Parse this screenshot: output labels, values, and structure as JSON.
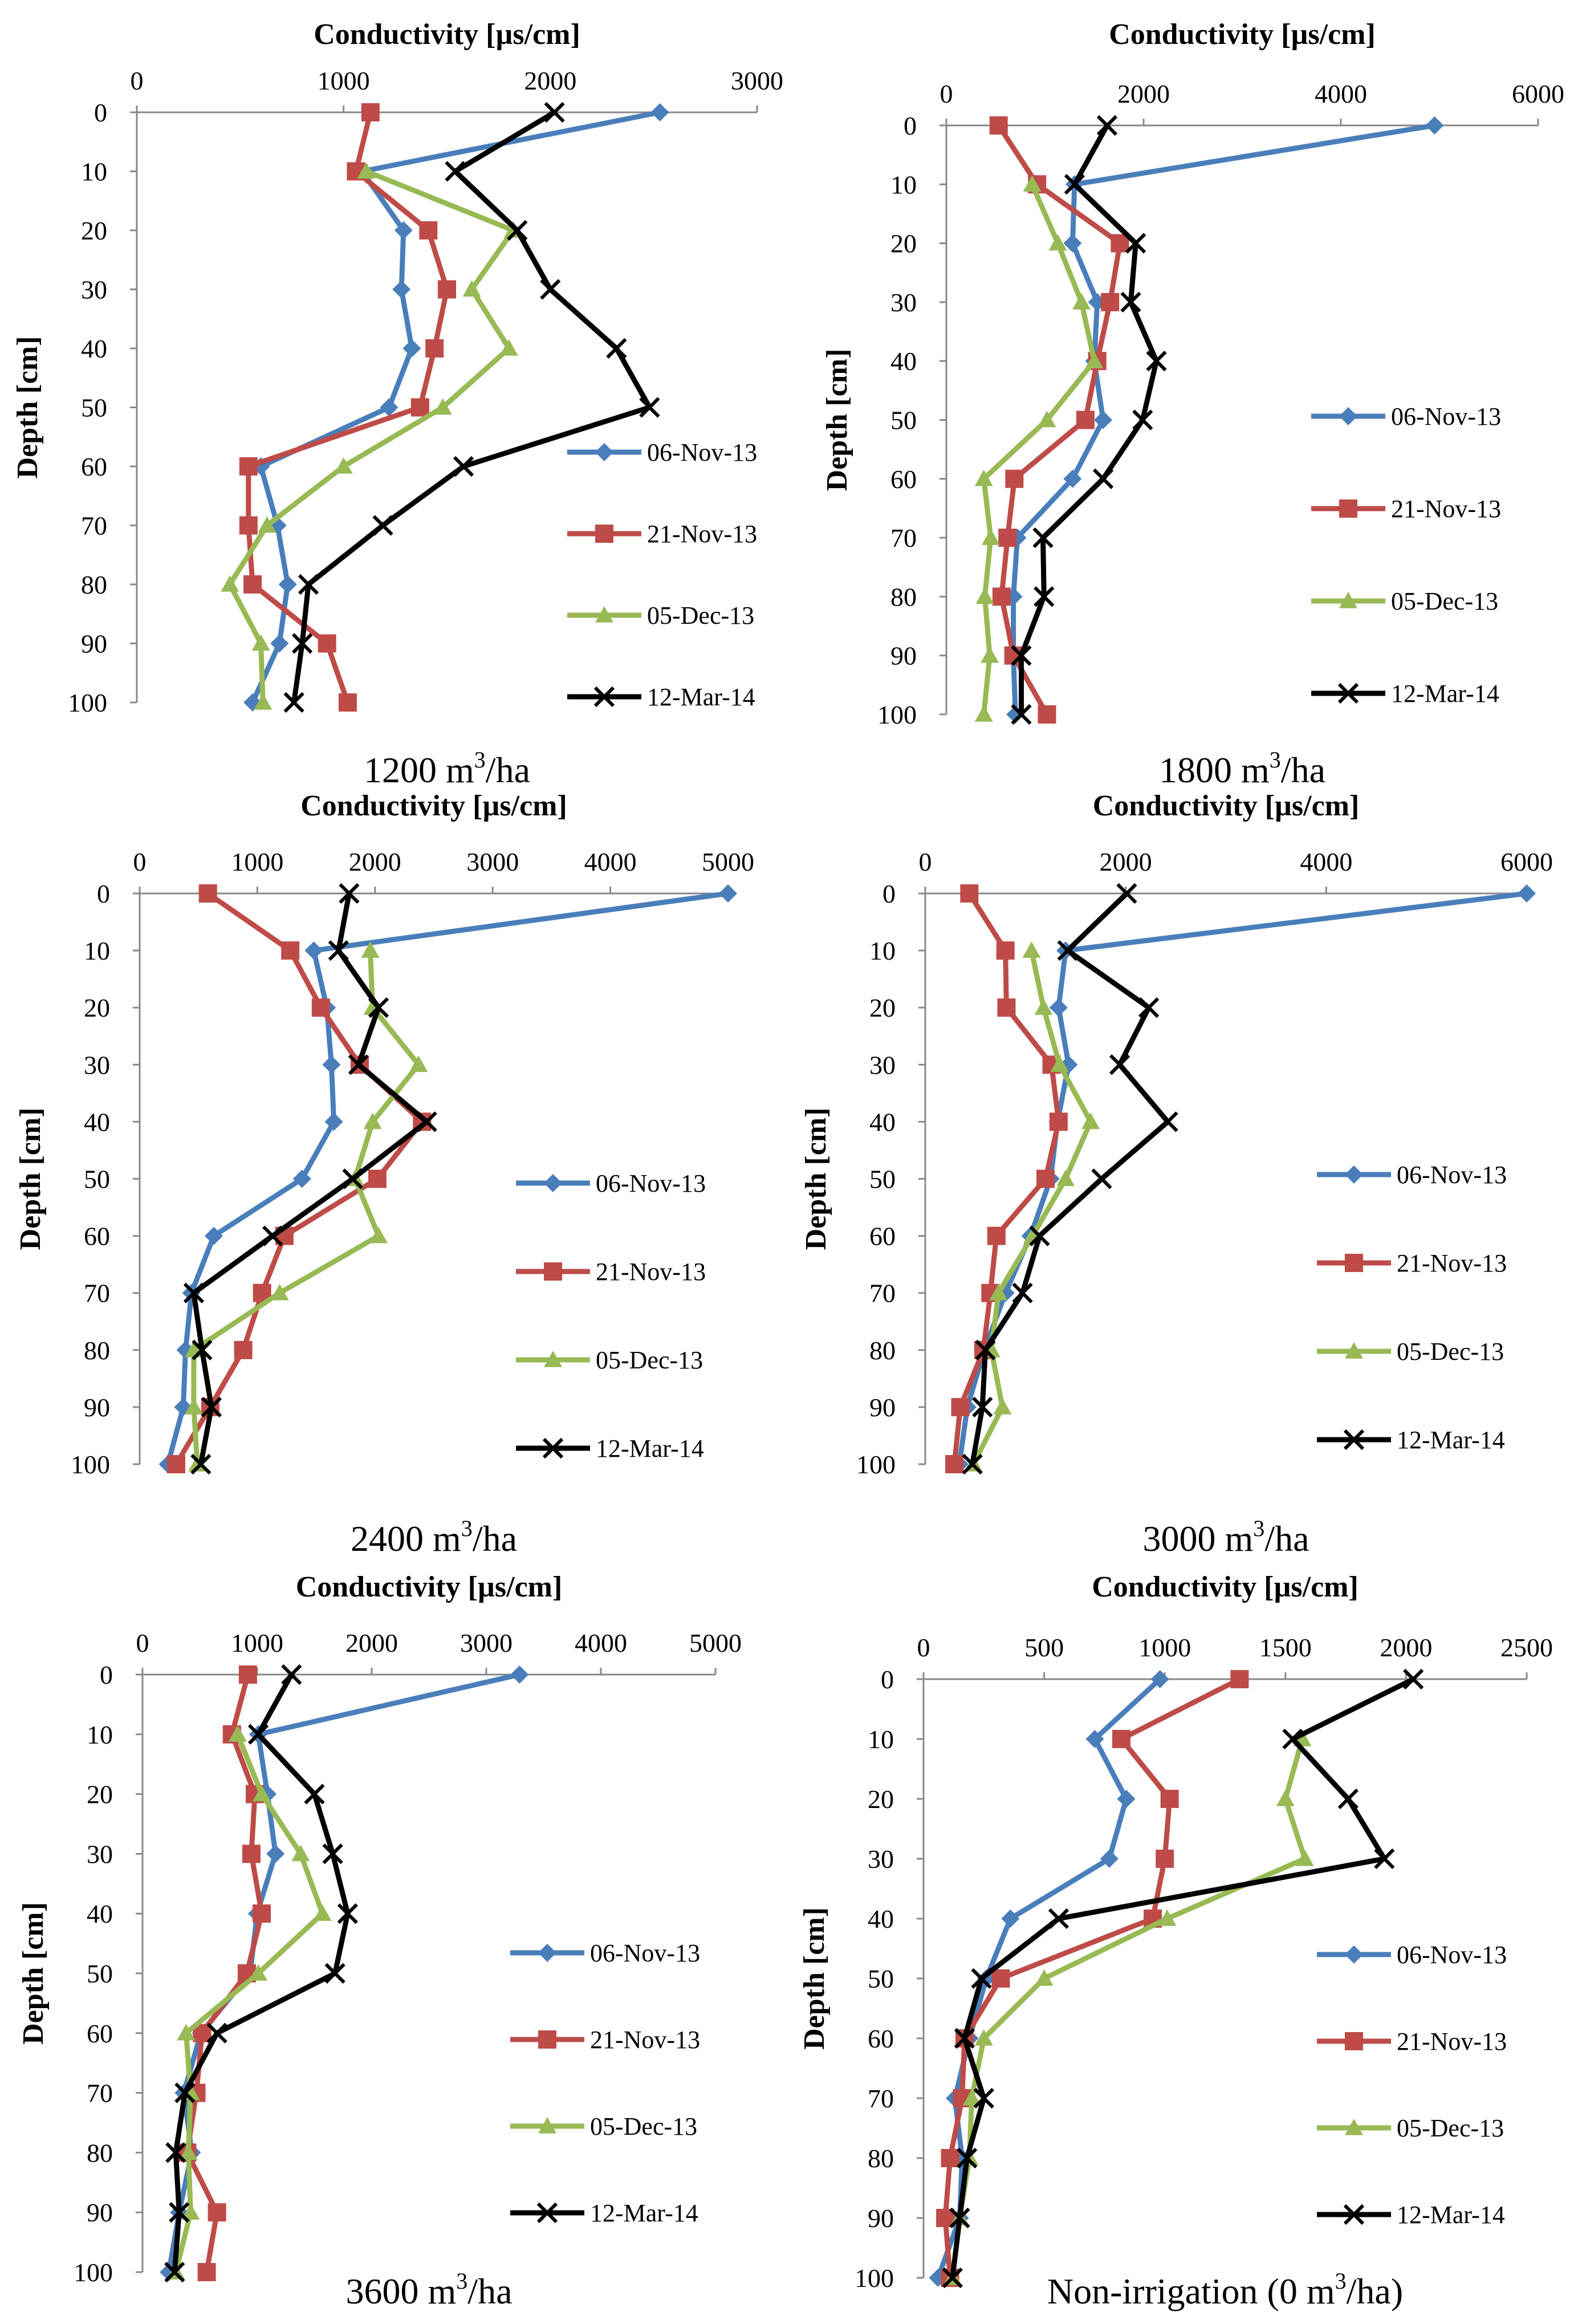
{
  "figure": {
    "series_colors": {
      "06-Nov-13": "#4a7ebb",
      "21-Nov-13": "#be4b48",
      "05-Dec-13": "#98b954",
      "12-Mar-14": "#000000"
    },
    "marker_shapes": {
      "06-Nov-13": "diamond",
      "21-Nov-13": "square",
      "05-Dec-13": "triangle",
      "12-Mar-14": "x"
    }
  },
  "chart_data": [
    {
      "type": "line",
      "caption": "1200 m³/ha",
      "xlabel": "Conductivity [µs/cm]",
      "ylabel": "Depth [cm]",
      "xlim": [
        0,
        3000
      ],
      "xticks": [
        "0",
        "1000",
        "2000",
        "3000"
      ],
      "ylim": [
        0,
        100
      ],
      "yticks": [
        "0",
        "10",
        "20",
        "30",
        "40",
        "50",
        "60",
        "70",
        "80",
        "90",
        "100"
      ],
      "depth": [
        0,
        10,
        20,
        30,
        40,
        50,
        60,
        70,
        80,
        90,
        100
      ],
      "series": [
        {
          "name": "06-Nov-13",
          "values": [
            2530,
            1090,
            1290,
            1280,
            1330,
            1220,
            600,
            680,
            730,
            690,
            560
          ]
        },
        {
          "name": "21-Nov-13",
          "values": [
            1130,
            1060,
            1410,
            1500,
            1440,
            1370,
            540,
            540,
            560,
            920,
            1020
          ]
        },
        {
          "name": "05-Dec-13",
          "values": [
            null,
            1110,
            1820,
            1620,
            1800,
            1480,
            1000,
            630,
            450,
            600,
            610
          ]
        },
        {
          "name": "12-Mar-14",
          "values": [
            2020,
            1540,
            1840,
            2000,
            2320,
            2480,
            1580,
            1190,
            830,
            800,
            760
          ]
        }
      ]
    },
    {
      "type": "line",
      "caption": "1800 m³/ha",
      "xlabel": "Conductivity [µs/cm]",
      "ylabel": "Depth [cm]",
      "xlim": [
        0,
        6000
      ],
      "xticks": [
        "0",
        "2000",
        "4000",
        "6000"
      ],
      "ylim": [
        0,
        100
      ],
      "yticks": [
        "0",
        "10",
        "20",
        "30",
        "40",
        "50",
        "60",
        "70",
        "80",
        "90",
        "100"
      ],
      "depth": [
        0,
        10,
        20,
        30,
        40,
        50,
        60,
        70,
        80,
        90,
        100
      ],
      "series": [
        {
          "name": "06-Nov-13",
          "values": [
            4950,
            1300,
            1280,
            1530,
            1500,
            1590,
            1280,
            720,
            680,
            680,
            700
          ]
        },
        {
          "name": "21-Nov-13",
          "values": [
            530,
            920,
            1760,
            1660,
            1530,
            1410,
            690,
            620,
            560,
            680,
            1020
          ]
        },
        {
          "name": "05-Dec-13",
          "values": [
            null,
            870,
            1130,
            1370,
            1500,
            1020,
            380,
            450,
            390,
            440,
            380
          ]
        },
        {
          "name": "12-Mar-14",
          "values": [
            1630,
            1300,
            1920,
            1870,
            2130,
            1990,
            1590,
            980,
            990,
            760,
            760
          ]
        }
      ]
    },
    {
      "type": "line",
      "caption": "2400 m³/ha",
      "xlabel": "Conductivity [µs/cm]",
      "ylabel": "Depth [cm]",
      "xlim": [
        0,
        5000
      ],
      "xticks": [
        "0",
        "1000",
        "2000",
        "3000",
        "4000",
        "5000"
      ],
      "ylim": [
        0,
        100
      ],
      "yticks": [
        "0",
        "10",
        "20",
        "30",
        "40",
        "50",
        "60",
        "70",
        "80",
        "90",
        "100"
      ],
      "depth": [
        0,
        10,
        20,
        30,
        40,
        50,
        60,
        70,
        80,
        90,
        100
      ],
      "series": [
        {
          "name": "06-Nov-13",
          "values": [
            5000,
            1480,
            1590,
            1630,
            1650,
            1380,
            630,
            440,
            390,
            370,
            240
          ]
        },
        {
          "name": "21-Nov-13",
          "values": [
            580,
            1280,
            1540,
            1870,
            2400,
            2020,
            1230,
            1040,
            880,
            600,
            310
          ]
        },
        {
          "name": "05-Dec-13",
          "values": [
            null,
            1960,
            1980,
            2370,
            1980,
            1830,
            2030,
            1190,
            460,
            460,
            490
          ]
        },
        {
          "name": "12-Mar-14",
          "values": [
            1780,
            1690,
            2030,
            1860,
            2440,
            1810,
            1130,
            460,
            530,
            610,
            520
          ]
        }
      ]
    },
    {
      "type": "line",
      "caption": "3000 m³/ha",
      "xlabel": "Conductivity [µs/cm]",
      "ylabel": "Depth [cm]",
      "xlim": [
        0,
        6000
      ],
      "xticks": [
        "0",
        "2000",
        "4000",
        "6000"
      ],
      "ylim": [
        0,
        100
      ],
      "yticks": [
        "0",
        "10",
        "20",
        "30",
        "40",
        "50",
        "60",
        "70",
        "80",
        "90",
        "100"
      ],
      "depth": [
        0,
        10,
        20,
        30,
        40,
        50,
        60,
        70,
        80,
        90,
        100
      ],
      "series": [
        {
          "name": "06-Nov-13",
          "values": [
            6000,
            1400,
            1330,
            1430,
            1320,
            1250,
            1050,
            800,
            590,
            420,
            340
          ]
        },
        {
          "name": "21-Nov-13",
          "values": [
            440,
            800,
            810,
            1260,
            1330,
            1200,
            710,
            650,
            580,
            350,
            290
          ]
        },
        {
          "name": "05-Dec-13",
          "values": [
            null,
            1060,
            1180,
            1340,
            1650,
            1400,
            1070,
            730,
            660,
            770,
            480
          ]
        },
        {
          "name": "12-Mar-14",
          "values": [
            2010,
            1420,
            2230,
            1940,
            2420,
            1760,
            1140,
            970,
            600,
            570,
            470
          ]
        }
      ]
    },
    {
      "type": "line",
      "caption": "3600 m³/ha",
      "xlabel": "Conductivity [µs/cm]",
      "ylabel": "Depth [cm]",
      "xlim": [
        0,
        5000
      ],
      "xticks": [
        "0",
        "1000",
        "2000",
        "3000",
        "4000",
        "5000"
      ],
      "ylim": [
        0,
        100
      ],
      "yticks": [
        "0",
        "10",
        "20",
        "30",
        "40",
        "50",
        "60",
        "70",
        "80",
        "90",
        "100"
      ],
      "depth": [
        0,
        10,
        20,
        30,
        40,
        50,
        60,
        70,
        80,
        90,
        100
      ],
      "series": [
        {
          "name": "06-Nov-13",
          "values": [
            3290,
            1010,
            1090,
            1160,
            1000,
            940,
            510,
            360,
            430,
            320,
            230
          ]
        },
        {
          "name": "21-Nov-13",
          "values": [
            920,
            780,
            980,
            950,
            1040,
            910,
            520,
            470,
            390,
            650,
            560
          ]
        },
        {
          "name": "05-Dec-13",
          "values": [
            null,
            830,
            1040,
            1380,
            1570,
            1010,
            380,
            420,
            400,
            420,
            290
          ]
        },
        {
          "name": "12-Mar-14",
          "values": [
            1300,
            1010,
            1500,
            1660,
            1790,
            1680,
            650,
            370,
            290,
            320,
            280
          ]
        }
      ]
    },
    {
      "type": "line",
      "caption": "Non-irrigation (0 m³/ha)",
      "xlabel": "Conductivity [µs/cm]",
      "ylabel": "Depth [cm]",
      "xlim": [
        0,
        2500
      ],
      "xticks": [
        "0",
        "500",
        "1000",
        "1500",
        "2000",
        "2500"
      ],
      "ylim": [
        0,
        100
      ],
      "yticks": [
        "0",
        "10",
        "20",
        "30",
        "40",
        "50",
        "60",
        "70",
        "80",
        "90",
        "100"
      ],
      "depth": [
        0,
        10,
        20,
        30,
        40,
        50,
        60,
        70,
        80,
        90,
        100
      ],
      "series": [
        {
          "name": "06-Nov-13",
          "values": [
            980,
            710,
            840,
            770,
            360,
            260,
            190,
            130,
            160,
            150,
            60
          ]
        },
        {
          "name": "21-Nov-13",
          "values": [
            1310,
            820,
            1020,
            1000,
            950,
            320,
            170,
            160,
            110,
            90,
            110
          ]
        },
        {
          "name": "05-Dec-13",
          "values": [
            null,
            1570,
            1500,
            1580,
            1010,
            500,
            250,
            200,
            190,
            150,
            120
          ]
        },
        {
          "name": "12-Mar-14",
          "values": [
            2030,
            1530,
            1760,
            1910,
            560,
            240,
            170,
            250,
            180,
            150,
            120
          ]
        }
      ]
    }
  ]
}
